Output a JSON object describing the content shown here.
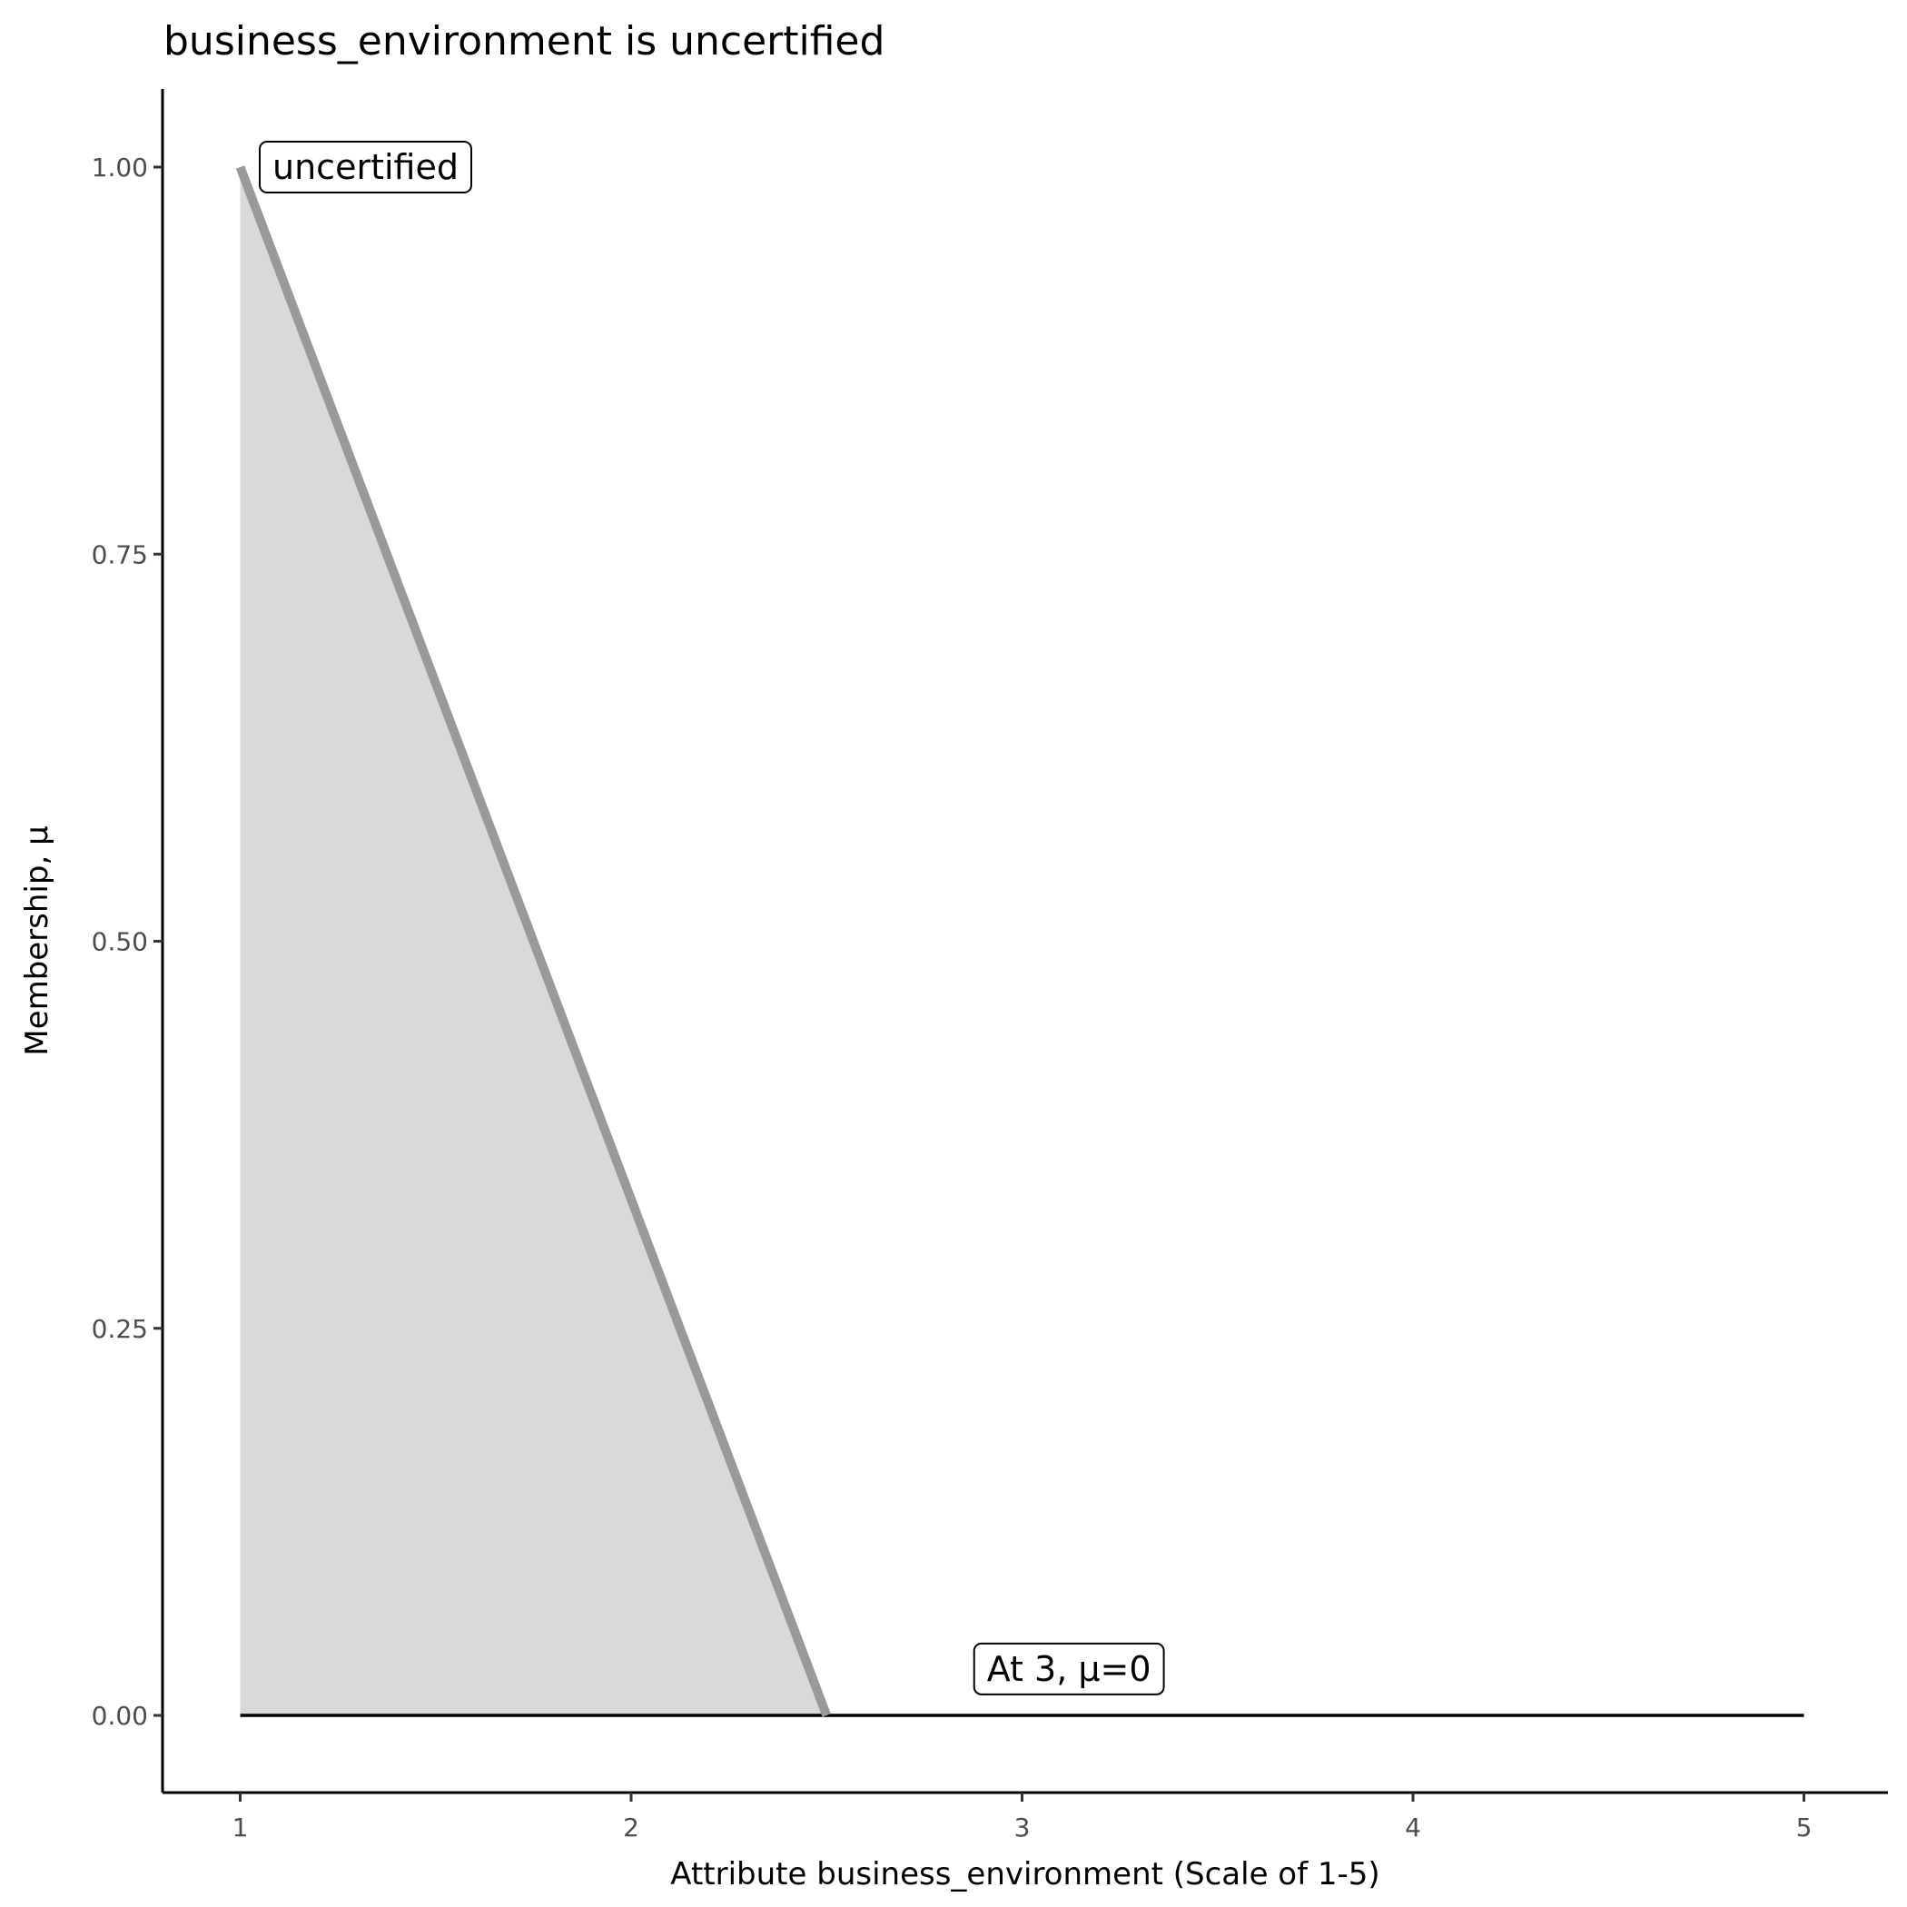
{
  "chart_data": {
    "type": "area",
    "title": "business_environment is uncertified",
    "xlabel": "Attribute business_environment (Scale of 1-5)",
    "ylabel": "Membership, μ",
    "xlim": [
      0.8,
      5.2
    ],
    "ylim": [
      -0.05,
      1.05
    ],
    "x_ticks": [
      1,
      2,
      3,
      4,
      5
    ],
    "x_tick_labels": [
      "1",
      "2",
      "3",
      "4",
      "5"
    ],
    "y_ticks": [
      0,
      0.25,
      0.5,
      0.75,
      1
    ],
    "y_tick_labels": [
      "0.00",
      "0.25",
      "0.50",
      "0.75",
      "1.00"
    ],
    "grid": false,
    "series": [
      {
        "x": [
          1,
          2.5
        ],
        "y": [
          1,
          0
        ],
        "color": "#999999",
        "fill": "#d9d9d9"
      }
    ],
    "baseline": {
      "x": [
        1,
        5
      ],
      "y": [
        0,
        0
      ],
      "color": "#000000"
    },
    "annotations": [
      {
        "text": "uncertified",
        "x": 1.05,
        "y": 1.0,
        "align": "left"
      },
      {
        "text": "At 3, μ=0",
        "x": 3.12,
        "y": 0.03,
        "align": "center"
      }
    ]
  }
}
